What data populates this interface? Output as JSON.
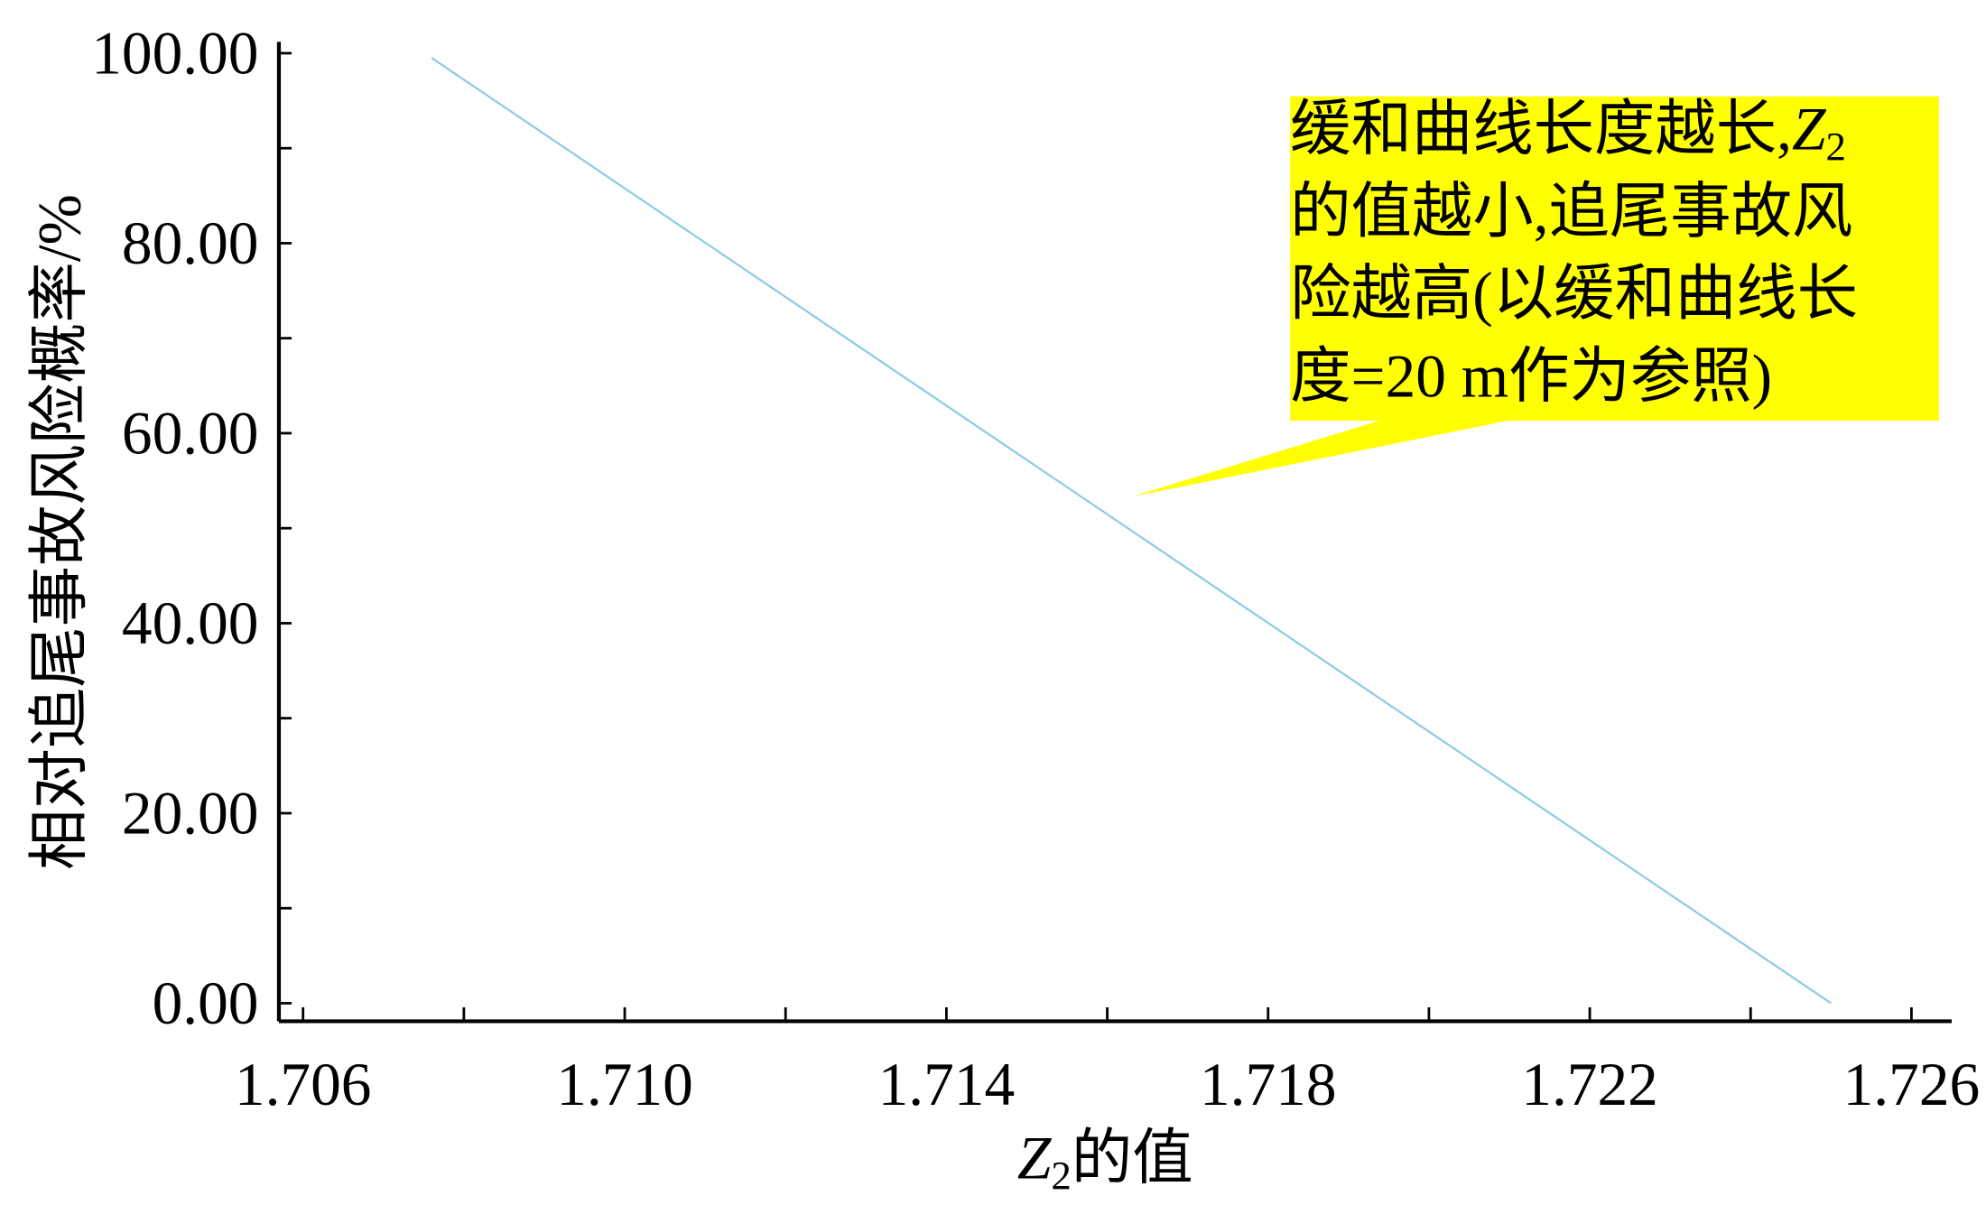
{
  "chart_data": {
    "type": "line",
    "y_label": "相对追尾事故风险概率/%",
    "x_label": [
      "Z",
      "2",
      "的值"
    ],
    "annotation": {
      "lines": [
        [
          "缓和曲线长度越长,",
          "Z",
          "2"
        ],
        [
          "的值越小,追尾事故风"
        ],
        [
          "险越高(以缓和曲线长"
        ],
        [
          "度=20 m作为参照)"
        ]
      ],
      "color": "#ffff00"
    },
    "x": [
      1.7076,
      1.725
    ],
    "series": [
      {
        "color": "#8ccbe8",
        "values": [
          99.5,
          0
        ]
      }
    ],
    "xlim": [
      1.7057,
      1.7265
    ],
    "ylim": [
      -1.9,
      101.2
    ],
    "xticks": [
      {
        "value": 1.706,
        "label": "1.706"
      },
      {
        "value": 1.71,
        "label": "1.710"
      },
      {
        "value": 1.714,
        "label": "1.714"
      },
      {
        "value": 1.718,
        "label": "1.718"
      },
      {
        "value": 1.722,
        "label": "1.722"
      },
      {
        "value": 1.726,
        "label": "1.726"
      }
    ],
    "xminorticks": [
      1.708,
      1.712,
      1.716,
      1.72,
      1.724
    ],
    "yticks": [
      {
        "value": 0,
        "label": "0.00"
      },
      {
        "value": 20,
        "label": "20.00"
      },
      {
        "value": 40,
        "label": "40.00"
      },
      {
        "value": 60,
        "label": "60.00"
      },
      {
        "value": 80,
        "label": "80.00"
      },
      {
        "value": 100,
        "label": "100.00"
      }
    ],
    "yminorticks": [
      10,
      30,
      50,
      70,
      90
    ]
  }
}
